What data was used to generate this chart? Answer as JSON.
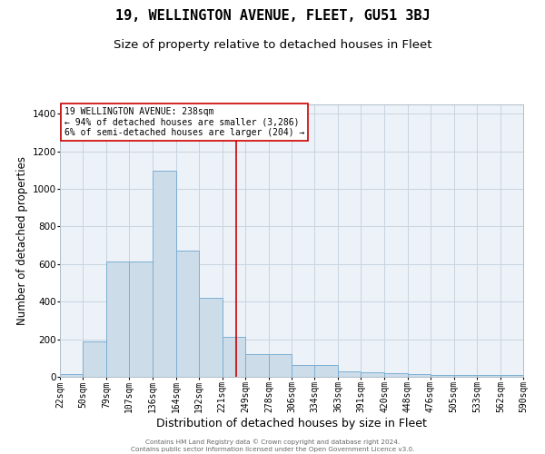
{
  "title": "19, WELLINGTON AVENUE, FLEET, GU51 3BJ",
  "subtitle": "Size of property relative to detached houses in Fleet",
  "xlabel": "Distribution of detached houses by size in Fleet",
  "ylabel": "Number of detached properties",
  "annotation_title": "19 WELLINGTON AVENUE: 238sqm",
  "annotation_line1": "← 94% of detached houses are smaller (3,286)",
  "annotation_line2": "6% of semi-detached houses are larger (204) →",
  "footer1": "Contains HM Land Registry data © Crown copyright and database right 2024.",
  "footer2": "Contains public sector information licensed under the Open Government Licence v3.0.",
  "property_size": 238,
  "bins": [
    22,
    50,
    79,
    107,
    136,
    164,
    192,
    221,
    249,
    278,
    306,
    334,
    363,
    391,
    420,
    448,
    476,
    505,
    533,
    562,
    590
  ],
  "counts": [
    15,
    190,
    615,
    615,
    1095,
    672,
    422,
    213,
    120,
    120,
    62,
    62,
    27,
    25,
    18,
    16,
    12,
    11,
    10,
    8,
    0
  ],
  "bar_color": "#ccdce8",
  "bar_edge_color": "#7bafd4",
  "vline_color": "#cc0000",
  "box_edge_color": "#cc0000",
  "grid_color": "#c8d4e0",
  "bg_color": "#edf2f8",
  "ylim": [
    0,
    1450
  ],
  "title_fontsize": 11,
  "subtitle_fontsize": 9.5,
  "xlabel_fontsize": 9,
  "ylabel_fontsize": 8.5,
  "tick_fontsize": 7,
  "annot_fontsize": 7
}
